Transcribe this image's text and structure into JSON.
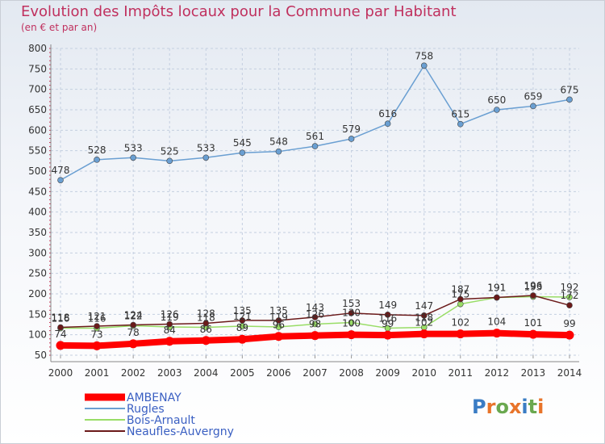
{
  "title": "Evolution des Impôts locaux pour la Commune par Habitant",
  "subtitle": "(en € et par an)",
  "logo": "Proxiti",
  "chart_data": {
    "type": "line",
    "x": [
      "2000",
      "2001",
      "2002",
      "2003",
      "2004",
      "2005",
      "2006",
      "2007",
      "2008",
      "2009",
      "2010",
      "2011",
      "2012",
      "2013",
      "2014"
    ],
    "ylim": [
      50,
      800
    ],
    "yticks": [
      50,
      100,
      150,
      200,
      250,
      300,
      350,
      400,
      450,
      500,
      550,
      600,
      650,
      700,
      750,
      800
    ],
    "grid": true,
    "legend_position": "bottom-left",
    "series": [
      {
        "name": "AMBENAY",
        "color": "#ff0000",
        "values": [
          74,
          73,
          78,
          84,
          86,
          89,
          96,
          98,
          100,
          99,
          102,
          102,
          104,
          101,
          99
        ]
      },
      {
        "name": "Rugles",
        "color": "#6a9fd2",
        "values": [
          478,
          528,
          533,
          525,
          533,
          545,
          548,
          561,
          579,
          616,
          758,
          615,
          650,
          659,
          675
        ]
      },
      {
        "name": "Bois-Arnault",
        "color": "#99dd66",
        "values": [
          116,
          116,
          122,
          119,
          118,
          121,
          119,
          126,
          130,
          116,
          118,
          175,
          191,
          193,
          192
        ]
      },
      {
        "name": "Neaufles-Auvergny",
        "color": "#6b1a1a",
        "values": [
          118,
          121,
          124,
          126,
          128,
          135,
          135,
          143,
          153,
          149,
          147,
          187,
          191,
          196,
          172
        ]
      }
    ]
  }
}
